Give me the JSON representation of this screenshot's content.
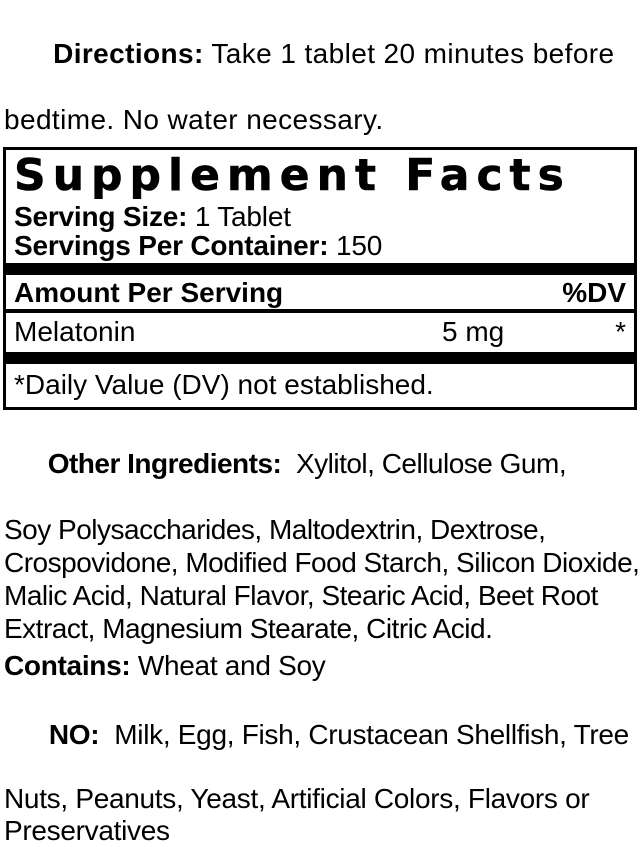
{
  "colors": {
    "text": "#000000",
    "background": "#ffffff"
  },
  "directions": {
    "label": "Directions:",
    "line1_rest": " Take 1 tablet 20 minutes before",
    "line2": "bedtime. No water necessary."
  },
  "supplement_facts": {
    "title": "Supplement Facts",
    "serving_size_label": "Serving Size:",
    "serving_size_value": " 1 Tablet",
    "servings_per_container_label": "Servings Per Container:",
    "servings_per_container_value": " 150",
    "amount_per_serving_label": "Amount Per Serving",
    "dv_header": "%DV",
    "rows": [
      {
        "name": "Melatonin",
        "amount": "5 mg",
        "dv": "*"
      }
    ],
    "footnote": "*Daily Value (DV) not established."
  },
  "other_ingredients": {
    "label": "Other Ingredients:",
    "lines": [
      "  Xylitol, Cellulose Gum,",
      "Soy Polysaccharides, Maltodextrin, Dextrose,",
      "Crospovidone, Modified Food Starch, Silicon Dioxide,",
      "Malic Acid, Natural Flavor, Stearic Acid, Beet Root",
      "Extract, Magnesium Stearate, Citric Acid."
    ]
  },
  "contains": {
    "label": "Contains:",
    "value": " Wheat and Soy"
  },
  "no_statement": {
    "label": "NO:",
    "lines": [
      "  Milk, Egg, Fish, Crustacean Shellfish, Tree",
      "Nuts, Peanuts, Yeast, Artificial Colors, Flavors or",
      "Preservatives"
    ]
  }
}
